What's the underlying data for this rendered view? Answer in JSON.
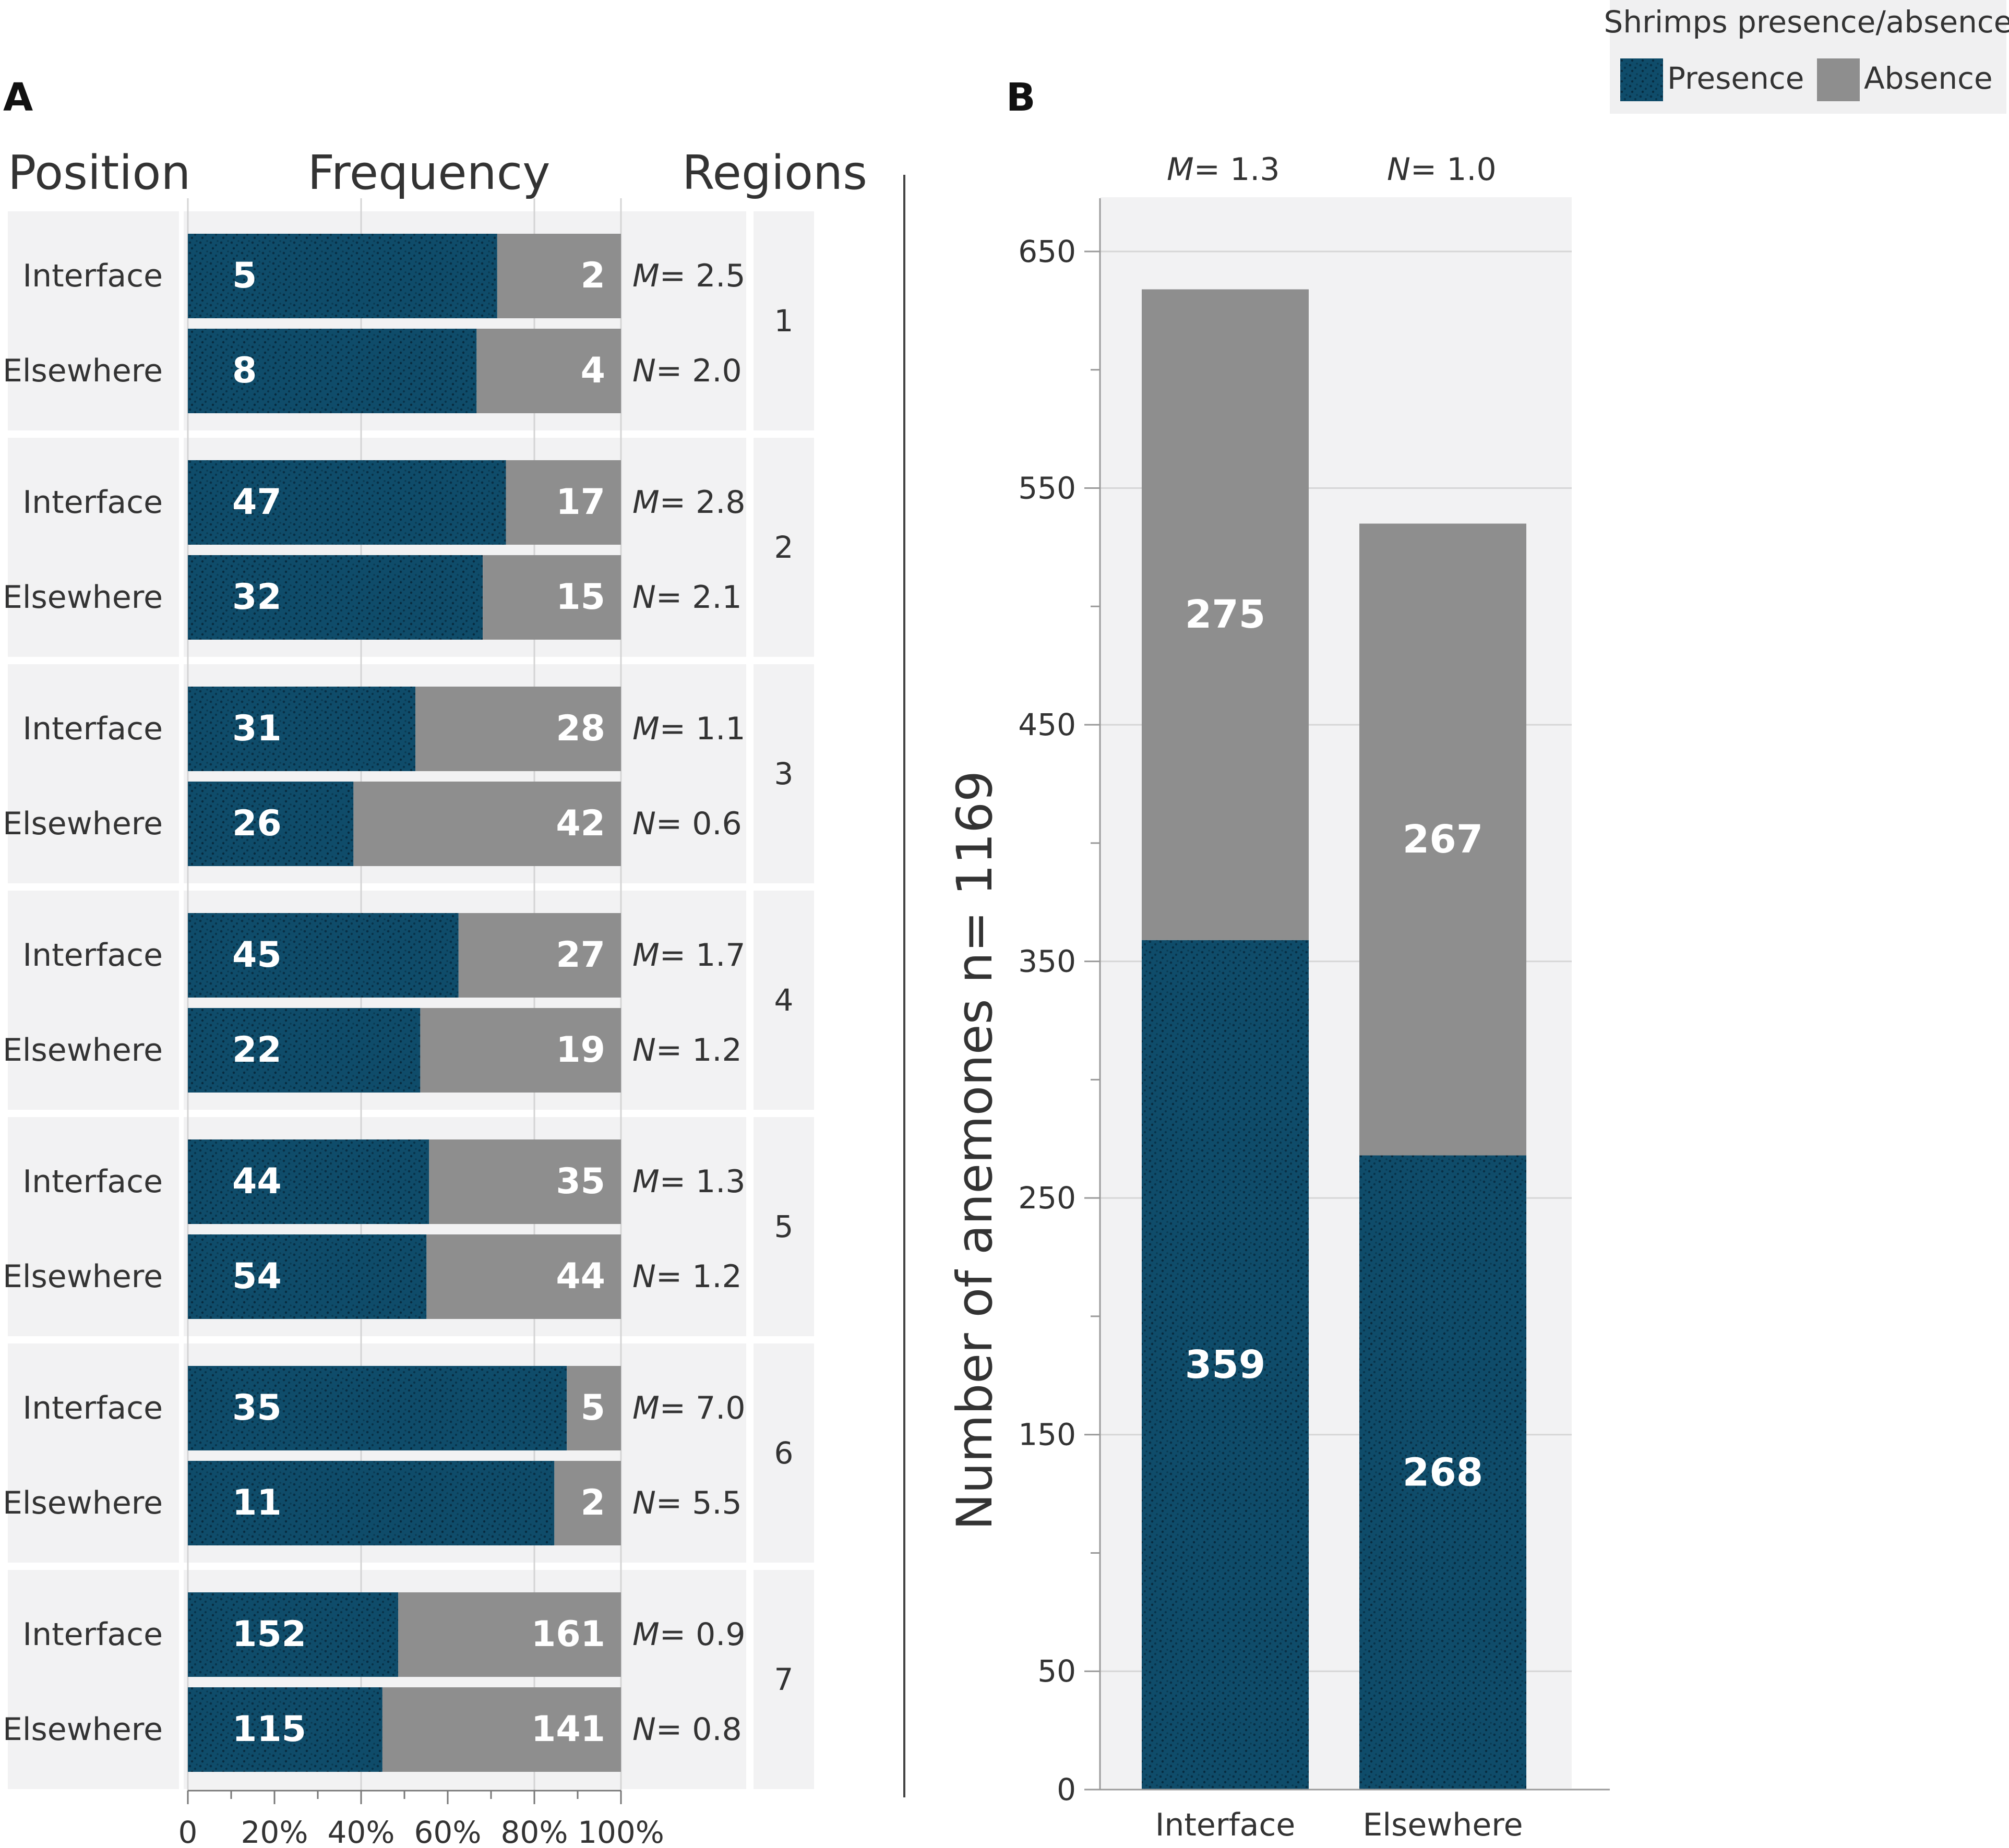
{
  "legend": {
    "title": "Shrimps presence/absence",
    "items": [
      {
        "label": "Presence",
        "color": "#0f4c6a"
      },
      {
        "label": "Absence",
        "color": "#8e8e8e"
      }
    ]
  },
  "colors": {
    "presence": "#0f4c6a",
    "absence": "#8e8e8e",
    "panel_bg": "#f2f2f3",
    "text": "#333333"
  },
  "panel_a": {
    "letter": "A",
    "headers": {
      "position": "Position",
      "frequency": "Frequency",
      "regions": "Regions"
    },
    "x_ticks": [
      "0",
      "20%",
      "40%",
      "60%",
      "80%",
      "100%"
    ]
  },
  "panel_b": {
    "letter": "B",
    "ylabel": "Number of anemones  n= 1169",
    "y_ticks": [
      "0",
      "50",
      "150",
      "250",
      "350",
      "450",
      "550",
      "650"
    ],
    "x_ticks": [
      "Interface",
      "Elsewhere"
    ],
    "top_stats": [
      {
        "key": "M",
        "eq": "= 1.3"
      },
      {
        "key": "N",
        "eq": "= 1.0"
      }
    ]
  },
  "chart_data": [
    {
      "type": "bar",
      "orientation": "horizontal",
      "stacked": true,
      "normalized": true,
      "title": "Frequency",
      "xlabel": "Frequency",
      "ylabel": "Position",
      "xlim": [
        0,
        100
      ],
      "series_names": [
        "Presence",
        "Absence"
      ],
      "regions": [
        {
          "region": "1",
          "rows": [
            {
              "position": "Interface",
              "presence": 5,
              "absence": 2
            },
            {
              "position": "Elsewhere",
              "presence": 8,
              "absence": 4
            }
          ],
          "stats": [
            {
              "key": "M",
              "eq": "= 2.5"
            },
            {
              "key": "N",
              "eq": "= 2.0"
            }
          ]
        },
        {
          "region": "2",
          "rows": [
            {
              "position": "Interface",
              "presence": 47,
              "absence": 17
            },
            {
              "position": "Elsewhere",
              "presence": 32,
              "absence": 15
            }
          ],
          "stats": [
            {
              "key": "M",
              "eq": "= 2.8"
            },
            {
              "key": "N",
              "eq": "=  2.1"
            }
          ]
        },
        {
          "region": "3",
          "rows": [
            {
              "position": "Interface",
              "presence": 31,
              "absence": 28
            },
            {
              "position": "Elsewhere",
              "presence": 26,
              "absence": 42
            }
          ],
          "stats": [
            {
              "key": "M",
              "eq": "= 1.1"
            },
            {
              "key": "N",
              "eq": "=  0.6"
            }
          ]
        },
        {
          "region": "4",
          "rows": [
            {
              "position": "Interface",
              "presence": 45,
              "absence": 27
            },
            {
              "position": "Elsewhere",
              "presence": 22,
              "absence": 19
            }
          ],
          "stats": [
            {
              "key": "M",
              "eq": "= 1.7"
            },
            {
              "key": "N",
              "eq": "=  1.2"
            }
          ]
        },
        {
          "region": "5",
          "rows": [
            {
              "position": "Interface",
              "presence": 44,
              "absence": 35
            },
            {
              "position": "Elsewhere",
              "presence": 54,
              "absence": 44
            }
          ],
          "stats": [
            {
              "key": "M",
              "eq": "= 1.3"
            },
            {
              "key": "N",
              "eq": "=  1.2"
            }
          ]
        },
        {
          "region": "6",
          "rows": [
            {
              "position": "Interface",
              "presence": 35,
              "absence": 5
            },
            {
              "position": "Elsewhere",
              "presence": 11,
              "absence": 2
            }
          ],
          "stats": [
            {
              "key": "M",
              "eq": "= 7.0"
            },
            {
              "key": "N",
              "eq": "=  5.5"
            }
          ]
        },
        {
          "region": "7",
          "rows": [
            {
              "position": "Interface",
              "presence": 152,
              "absence": 161
            },
            {
              "position": "Elsewhere",
              "presence": 115,
              "absence": 141
            }
          ],
          "stats": [
            {
              "key": "M",
              "eq": "= 0.9"
            },
            {
              "key": "N",
              "eq": "=  0.8"
            }
          ]
        }
      ]
    },
    {
      "type": "bar",
      "orientation": "vertical",
      "stacked": true,
      "title": "",
      "ylabel": "Number of anemones  n= 1169",
      "ylim": [
        0,
        670
      ],
      "categories": [
        "Interface",
        "Elsewhere"
      ],
      "series": [
        {
          "name": "Presence",
          "values": [
            359,
            268
          ]
        },
        {
          "name": "Absence",
          "values": [
            275,
            267
          ]
        }
      ]
    }
  ]
}
